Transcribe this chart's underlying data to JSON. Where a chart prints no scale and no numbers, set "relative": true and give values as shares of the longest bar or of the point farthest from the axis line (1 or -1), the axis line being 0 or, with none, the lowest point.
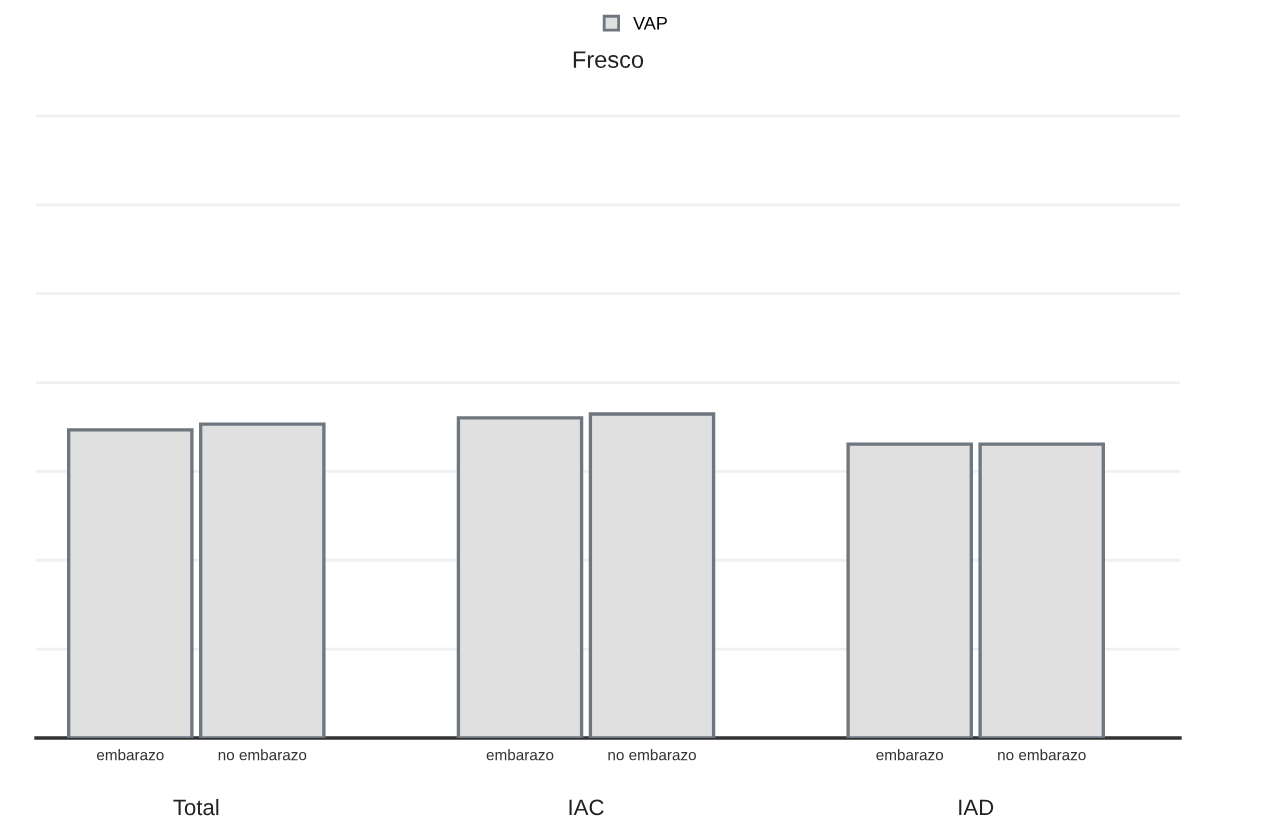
{
  "chart_data": {
    "type": "bar",
    "title": "Fresco",
    "relative": true,
    "grid": "y",
    "legend": "top",
    "categories": [
      "embarazo",
      "no embarazo",
      "embarazo",
      "no embarazo",
      "embarazo",
      "no embarazo"
    ],
    "series": [
      {
        "name": "VAP",
        "color": "#e0e0e0",
        "values": [
          0.951,
          0.969,
          0.988,
          1,
          0.907,
          0.907
        ]
      }
    ],
    "annotations": [
      "Total",
      "IAC",
      "IAD"
    ]
  }
}
